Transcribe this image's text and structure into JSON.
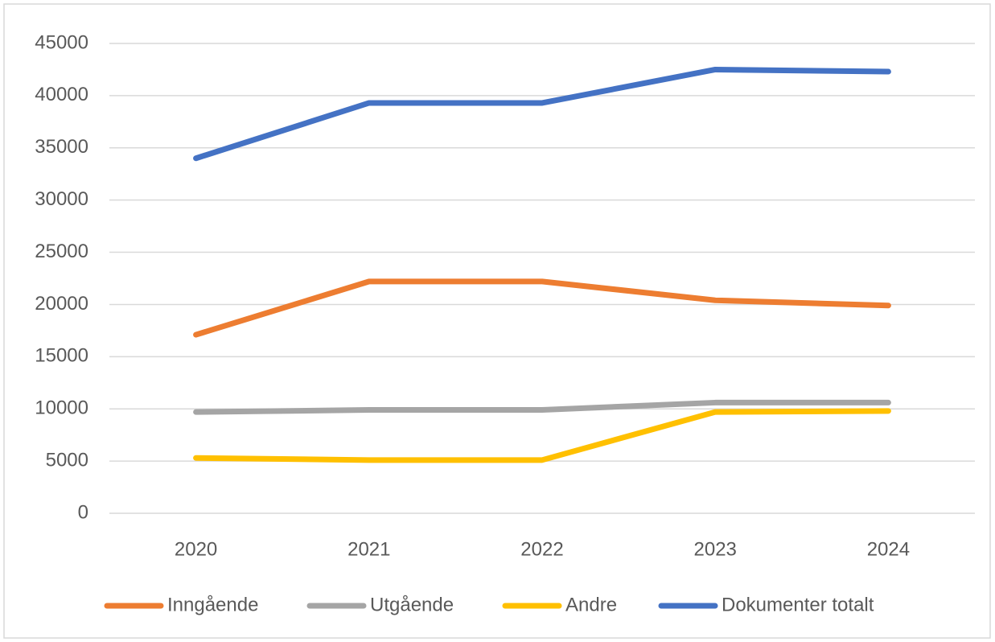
{
  "chart_data": {
    "type": "line",
    "categories": [
      "2020",
      "2021",
      "2022",
      "2023",
      "2024"
    ],
    "series": [
      {
        "name": "Inngående",
        "color": "#ed7d31",
        "values": [
          17100,
          22200,
          22200,
          20400,
          19900
        ]
      },
      {
        "name": "Utgående",
        "color": "#a5a5a5",
        "values": [
          9700,
          9900,
          9900,
          10600,
          10600
        ]
      },
      {
        "name": "Andre",
        "color": "#ffc000",
        "values": [
          5300,
          5100,
          5100,
          9700,
          9800
        ]
      },
      {
        "name": "Dokumenter totalt",
        "color": "#4472c4",
        "values": [
          34000,
          39300,
          39300,
          42500,
          42300
        ]
      }
    ],
    "ylim": [
      0,
      45000
    ],
    "yticks": [
      0,
      5000,
      10000,
      15000,
      20000,
      25000,
      30000,
      35000,
      40000,
      45000
    ],
    "grid": true,
    "legend": "bottom"
  }
}
